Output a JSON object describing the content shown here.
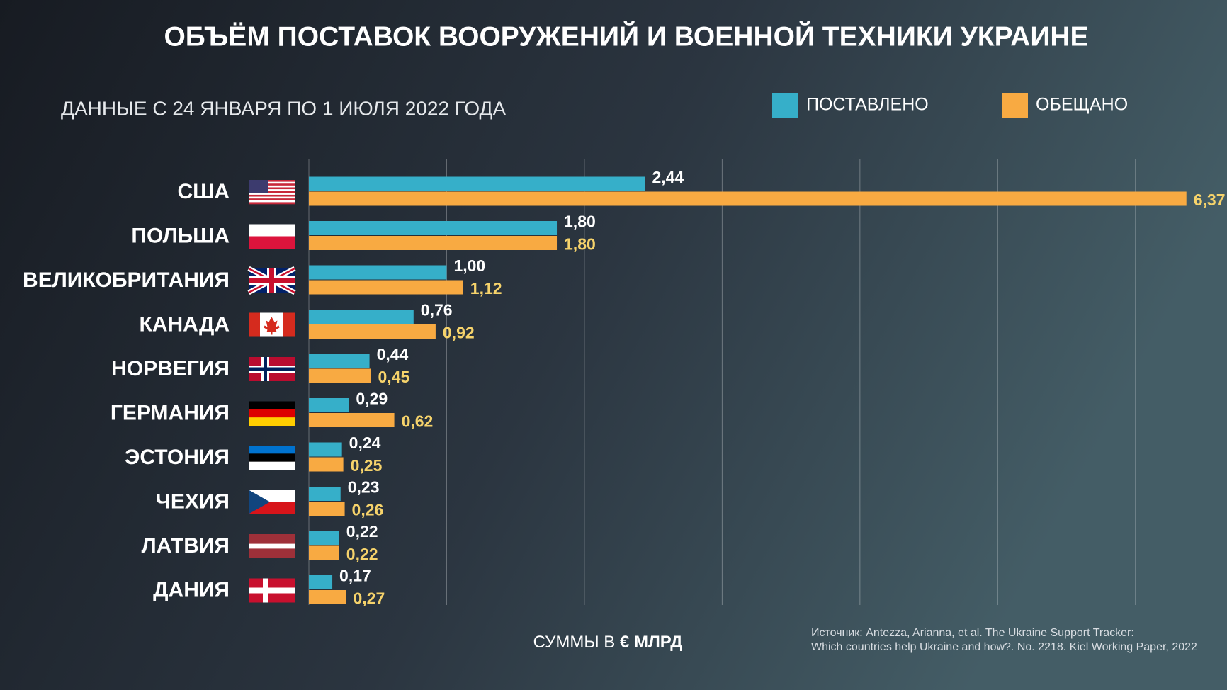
{
  "chart_data": {
    "type": "hbar",
    "title": "ОБЪЁМ ПОСТАВОК ВООРУЖЕНИЙ И ВОЕННОЙ ТЕХНИКИ УКРАИНЕ",
    "subtitle": "ДАННЫЕ С 24 ЯНВАРЯ ПО 1 ИЮЛЯ 2022 ГОДА",
    "categories": [
      "США",
      "ПОЛЬША",
      "ВЕЛИКОБРИТАНИЯ",
      "КАНАДА",
      "НОРВЕГИЯ",
      "ГЕРМАНИЯ",
      "ЭСТОНИЯ",
      "ЧЕХИЯ",
      "ЛАТВИЯ",
      "ДАНИЯ"
    ],
    "series": [
      {
        "name": "ПОСТАВЛЕНО",
        "color": "#36afc9",
        "values": [
          2.44,
          1.8,
          1.0,
          0.76,
          0.44,
          0.29,
          0.24,
          0.23,
          0.22,
          0.17
        ],
        "value_labels": [
          "2,44",
          "1,80",
          "1,00",
          "0,76",
          "0,44",
          "0,29",
          "0,24",
          "0,23",
          "0,22",
          "0,17"
        ]
      },
      {
        "name": "ОБЕЩАНО",
        "color": "#f8aa42",
        "values": [
          6.37,
          1.8,
          1.12,
          0.92,
          0.45,
          0.62,
          0.25,
          0.26,
          0.22,
          0.27
        ],
        "value_labels": [
          "6,37",
          "1,80",
          "1,12",
          "0,92",
          "0,45",
          "0,62",
          "0,25",
          "0,26",
          "0,22",
          "0,27"
        ]
      }
    ],
    "xlim": [
      0,
      6.5
    ],
    "xticks": [
      0,
      1,
      2,
      3,
      4,
      5,
      6
    ],
    "grid": true,
    "unit_note": {
      "prefix": "СУММЫ В",
      "emphasis": "€ МЛРД"
    },
    "source": [
      "Источник: Antezza, Arianna, et al. The Ukraine Support Tracker:",
      "Which countries help Ukraine and how?. No. 2218. Kiel Working Paper, 2022"
    ]
  }
}
